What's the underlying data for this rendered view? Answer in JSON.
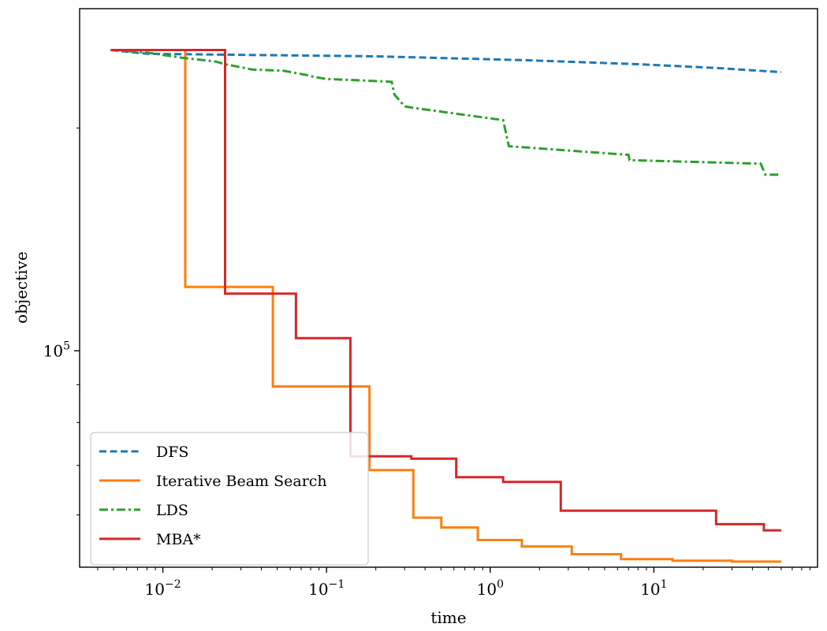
{
  "chart_data": {
    "type": "line",
    "title": "",
    "xlabel": "time",
    "ylabel": "objective",
    "x_scale": "log",
    "y_scale": "log",
    "xlim": [
      0.0031,
      100
    ],
    "ylim": [
      51000,
      290000
    ],
    "x_ticks": [
      {
        "value": 0.01,
        "mantissa": "10",
        "exp": "−2"
      },
      {
        "value": 0.1,
        "mantissa": "10",
        "exp": "−1"
      },
      {
        "value": 1,
        "mantissa": "10",
        "exp": "0"
      },
      {
        "value": 10,
        "mantissa": "10",
        "exp": "1"
      }
    ],
    "y_ticks": [
      {
        "value": 100000,
        "mantissa": "10",
        "exp": "5"
      }
    ],
    "grid": false,
    "legend_position": "lower-left",
    "series": [
      {
        "name": "DFS",
        "color": "#1f77b4",
        "style": "dashed",
        "x": [
          0.0048,
          0.008,
          0.2,
          1.7,
          8,
          25,
          60
        ],
        "y": [
          255000,
          252000,
          250000,
          247000,
          244000,
          241000,
          238000
        ]
      },
      {
        "name": "Iterative Beam Search",
        "color": "#ff7f0e",
        "style": "solid",
        "x": [
          0.0048,
          0.0137,
          0.0137,
          0.047,
          0.047,
          0.183,
          0.183,
          0.339,
          0.339,
          0.503,
          0.503,
          0.84,
          0.84,
          1.56,
          1.56,
          3.15,
          3.15,
          6.3,
          6.3,
          13,
          13,
          30,
          30,
          60
        ],
        "y": [
          255000,
          255000,
          122000,
          122000,
          89500,
          89500,
          69000,
          69000,
          59500,
          59500,
          57700,
          57700,
          55500,
          55500,
          54400,
          54400,
          53100,
          53100,
          52300,
          52300,
          52050,
          52050,
          51900,
          51900
        ]
      },
      {
        "name": "LDS",
        "color": "#2ca02c",
        "style": "dashdot",
        "x": [
          0.0048,
          0.008,
          0.013,
          0.021,
          0.024,
          0.029,
          0.035,
          0.055,
          0.075,
          0.08,
          0.1,
          0.16,
          0.25,
          0.26,
          0.3,
          0.34,
          1.2,
          1.3,
          7,
          7.1,
          45,
          48,
          60
        ],
        "y": [
          255000,
          253000,
          249000,
          246000,
          244000,
          242000,
          240000,
          239000,
          236000,
          235000,
          233000,
          232000,
          231000,
          222000,
          214000,
          213000,
          205000,
          189000,
          184000,
          181000,
          179000,
          173000,
          173000
        ]
      },
      {
        "name": "MBA*",
        "color": "#d62728",
        "style": "solid",
        "x": [
          0.0048,
          0.024,
          0.024,
          0.065,
          0.065,
          0.14,
          0.14,
          0.33,
          0.33,
          0.62,
          0.62,
          1.2,
          1.2,
          2.7,
          2.7,
          24,
          24,
          47,
          47,
          60
        ],
        "y": [
          255000,
          255000,
          119500,
          119500,
          104000,
          104000,
          72000,
          72000,
          71500,
          71500,
          67500,
          67500,
          66500,
          66500,
          60800,
          60800,
          58300,
          58300,
          57200,
          57200
        ]
      }
    ]
  }
}
